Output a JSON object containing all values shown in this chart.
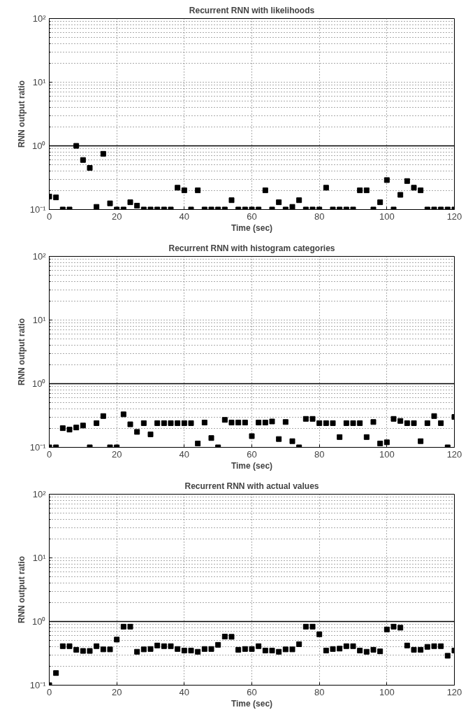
{
  "chart_data": [
    {
      "type": "scatter",
      "title": "Recurrent RNN with likelihoods",
      "xlabel": "Time (sec)",
      "ylabel": "RNN output ratio",
      "log": "y",
      "grid": true,
      "marker": "square",
      "xlim": [
        0,
        120
      ],
      "xticks": [
        0,
        20,
        40,
        60,
        80,
        100,
        120
      ],
      "ylim": [
        0.1,
        100
      ],
      "yticks": [
        {
          "value": 0.1,
          "label": "10⁻¹"
        },
        {
          "value": 1,
          "label": "10⁰"
        },
        {
          "value": 10,
          "label": "10¹"
        },
        {
          "value": 100,
          "label": "10²"
        }
      ],
      "ref_lines": [
        {
          "axis": "y",
          "value": 1,
          "color": "#000000",
          "line_style": "solid"
        }
      ],
      "x": [
        0,
        2,
        4,
        6,
        8,
        10,
        12,
        14,
        16,
        18,
        20,
        22,
        24,
        26,
        28,
        30,
        32,
        34,
        36,
        38,
        40,
        42,
        44,
        46,
        48,
        50,
        52,
        54,
        56,
        58,
        60,
        62,
        64,
        66,
        68,
        70,
        72,
        74,
        76,
        78,
        80,
        82,
        84,
        86,
        88,
        90,
        92,
        94,
        96,
        98,
        100,
        102,
        104,
        106,
        108,
        110,
        112,
        114,
        116,
        118,
        120
      ],
      "series": [
        {
          "color": "#000000",
          "values": [
            0.16,
            0.155,
            0.1,
            0.1,
            1.0,
            0.6,
            0.45,
            0.11,
            0.75,
            0.125,
            0.1,
            0.1,
            0.13,
            0.115,
            0.1,
            0.1,
            0.1,
            0.1,
            0.1,
            0.22,
            0.2,
            0.1,
            0.2,
            0.1,
            0.1,
            0.1,
            0.1,
            0.14,
            0.1,
            0.1,
            0.1,
            0.1,
            0.2,
            0.1,
            0.13,
            0.1,
            0.11,
            0.14,
            0.1,
            0.1,
            0.1,
            0.22,
            0.1,
            0.1,
            0.1,
            0.1,
            0.2,
            0.2,
            0.1,
            0.13,
            0.29,
            0.1,
            0.17,
            0.28,
            0.22,
            0.2,
            0.1,
            0.1,
            0.1,
            0.1,
            0.1
          ]
        }
      ]
    },
    {
      "type": "scatter",
      "title": "Recurrent RNN with histogram categories",
      "xlabel": "Time (sec)",
      "ylabel": "RNN output ratio",
      "log": "y",
      "grid": true,
      "marker": "square",
      "xlim": [
        0,
        120
      ],
      "xticks": [
        0,
        20,
        40,
        60,
        80,
        100,
        120
      ],
      "ylim": [
        0.1,
        100
      ],
      "yticks": [
        {
          "value": 0.1,
          "label": "10⁻¹"
        },
        {
          "value": 1,
          "label": "10⁰"
        },
        {
          "value": 10,
          "label": "10¹"
        },
        {
          "value": 100,
          "label": "10²"
        }
      ],
      "ref_lines": [
        {
          "axis": "y",
          "value": 1,
          "color": "#000000",
          "line_style": "solid"
        }
      ],
      "x": [
        0,
        2,
        4,
        6,
        8,
        10,
        12,
        14,
        16,
        18,
        20,
        22,
        24,
        26,
        28,
        30,
        32,
        34,
        36,
        38,
        40,
        42,
        44,
        46,
        48,
        50,
        52,
        54,
        56,
        58,
        60,
        62,
        64,
        66,
        68,
        70,
        72,
        74,
        76,
        78,
        80,
        82,
        84,
        86,
        88,
        90,
        92,
        94,
        96,
        98,
        100,
        102,
        104,
        106,
        108,
        110,
        112,
        114,
        116,
        118,
        120
      ],
      "series": [
        {
          "color": "#000000",
          "values": [
            0.1,
            0.1,
            0.2,
            0.19,
            0.205,
            0.22,
            0.1,
            0.24,
            0.31,
            0.1,
            0.1,
            0.33,
            0.23,
            0.175,
            0.24,
            0.16,
            0.24,
            0.24,
            0.24,
            0.24,
            0.24,
            0.24,
            0.115,
            0.245,
            0.14,
            0.1,
            0.27,
            0.245,
            0.245,
            0.245,
            0.15,
            0.245,
            0.245,
            0.255,
            0.135,
            0.25,
            0.125,
            0.1,
            0.28,
            0.28,
            0.24,
            0.24,
            0.24,
            0.145,
            0.24,
            0.24,
            0.24,
            0.145,
            0.25,
            0.115,
            0.12,
            0.28,
            0.26,
            0.24,
            0.24,
            0.125,
            0.24,
            0.31,
            0.24,
            0.1,
            0.3
          ]
        }
      ]
    },
    {
      "type": "scatter",
      "title": "Recurrent RNN with actual values",
      "xlabel": "Time (sec)",
      "ylabel": "RNN output ratio",
      "log": "y",
      "grid": true,
      "marker": "square",
      "xlim": [
        0,
        120
      ],
      "xticks": [
        0,
        20,
        40,
        60,
        80,
        100,
        120
      ],
      "ylim": [
        0.1,
        100
      ],
      "yticks": [
        {
          "value": 0.1,
          "label": "10⁻¹"
        },
        {
          "value": 1,
          "label": "10⁰"
        },
        {
          "value": 10,
          "label": "10¹"
        },
        {
          "value": 100,
          "label": "10²"
        }
      ],
      "ref_lines": [
        {
          "axis": "y",
          "value": 1,
          "color": "#000000",
          "line_style": "solid"
        }
      ],
      "x": [
        0,
        2,
        4,
        6,
        8,
        10,
        12,
        14,
        16,
        18,
        20,
        22,
        24,
        26,
        28,
        30,
        32,
        34,
        36,
        38,
        40,
        42,
        44,
        46,
        48,
        50,
        52,
        54,
        56,
        58,
        60,
        62,
        64,
        66,
        68,
        70,
        72,
        74,
        76,
        78,
        80,
        82,
        84,
        86,
        88,
        90,
        92,
        94,
        96,
        98,
        100,
        102,
        104,
        106,
        108,
        110,
        112,
        114,
        116,
        118,
        120
      ],
      "series": [
        {
          "color": "#000000",
          "values": [
            0.1,
            0.155,
            0.41,
            0.41,
            0.36,
            0.345,
            0.345,
            0.41,
            0.365,
            0.365,
            0.52,
            0.83,
            0.83,
            0.335,
            0.365,
            0.37,
            0.42,
            0.41,
            0.41,
            0.37,
            0.35,
            0.35,
            0.335,
            0.37,
            0.37,
            0.43,
            0.58,
            0.575,
            0.36,
            0.37,
            0.37,
            0.41,
            0.35,
            0.35,
            0.335,
            0.365,
            0.365,
            0.44,
            0.83,
            0.83,
            0.63,
            0.35,
            0.37,
            0.375,
            0.41,
            0.41,
            0.35,
            0.335,
            0.36,
            0.34,
            0.75,
            0.83,
            0.8,
            0.42,
            0.36,
            0.36,
            0.4,
            0.41,
            0.41,
            0.29,
            0.35
          ]
        }
      ]
    }
  ]
}
